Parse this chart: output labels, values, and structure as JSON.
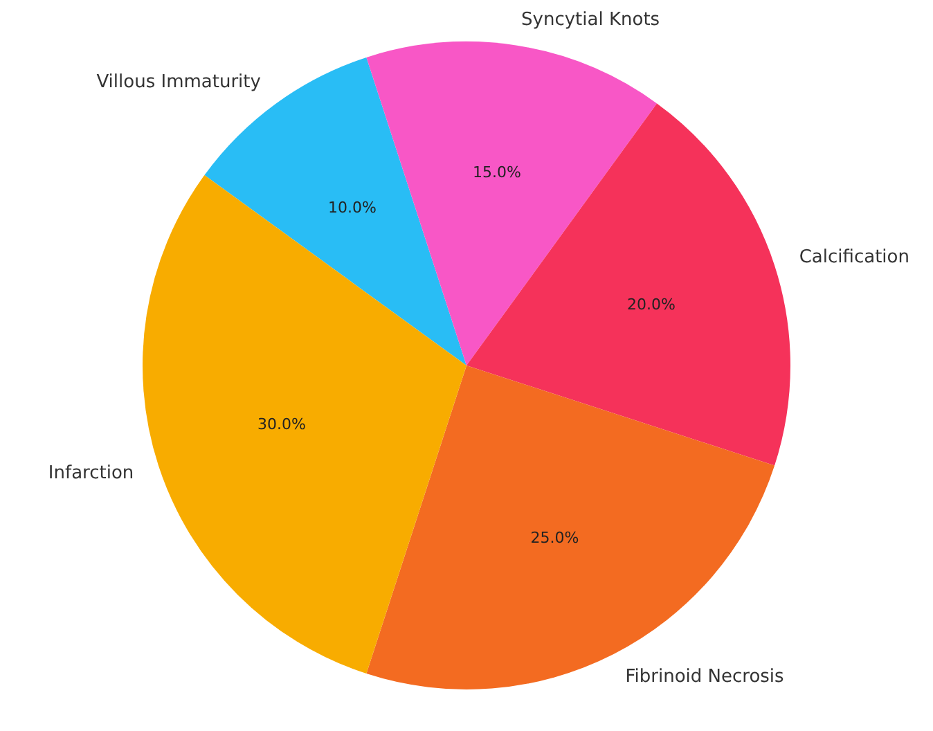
{
  "chart_data": {
    "type": "pie",
    "categories": [
      "Villous Immaturity",
      "Syncytial Knots",
      "Calcification",
      "Fibrinoid Necrosis",
      "Infarction"
    ],
    "values": [
      10,
      15,
      20,
      25,
      30
    ],
    "colors": [
      "#29bdf5",
      "#f857c6",
      "#f5325a",
      "#f36b21",
      "#f8ac00"
    ],
    "value_labels": [
      "10.0%",
      "15.0%",
      "20.0%",
      "25.0%",
      "30.0%"
    ]
  }
}
